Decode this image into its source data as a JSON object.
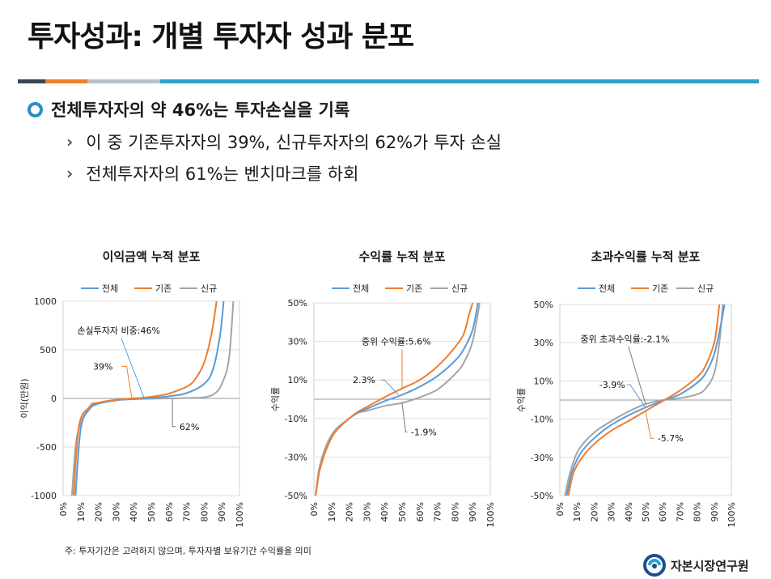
{
  "slide": {
    "title": "투자성과: 개별 투자자 성과 분포",
    "bullet_main": "전체투자자의 약 46%는 투자손실을 기록",
    "bullet_sub1": "이 중 기존투자자의 39%, 신규투자자의 62%가 투자 손실",
    "bullet_sub2": "전체투자자의 61%는 벤치마크를 하회",
    "footnote": "주: 투자기간은 고려하지 않으며, 투자자별 보유기간 수익률을 의미",
    "logo_text": "자본시장연구원",
    "rule_colors": [
      "#3a4656",
      "#f07f28",
      "#b8c1c9",
      "#2aa4cd"
    ]
  },
  "icons": {
    "bullet": "ring-bullet-icon",
    "sub": "chevron-right-icon",
    "logo": "swirl-logo-icon"
  },
  "colors": {
    "전체": "#5b9bd5",
    "기존": "#ed7d31",
    "신규": "#a5a5a5"
  },
  "chart_data": [
    {
      "type": "line",
      "title": "이익금액 누적 분포",
      "xlabel": "",
      "ylabel": "이익(만원)",
      "ylim": [
        -1000,
        1000
      ],
      "yticks": [
        1000,
        500,
        0,
        -500,
        -1000
      ],
      "ytick_labels": [
        "1000",
        "500",
        "0",
        "-500",
        "-1000"
      ],
      "x": [
        0,
        10,
        20,
        30,
        40,
        50,
        60,
        70,
        80,
        90,
        100
      ],
      "xtick_labels": [
        "0%",
        "10%",
        "20%",
        "30%",
        "40%",
        "50%",
        "60%",
        "70%",
        "80%",
        "90%",
        "100%"
      ],
      "grid": "horizontal",
      "legend": "top",
      "series": [
        {
          "name": "전체",
          "points": [
            [
              7,
              -1000
            ],
            [
              10,
              -310
            ],
            [
              15,
              -110
            ],
            [
              20,
              -55
            ],
            [
              30,
              -20
            ],
            [
              40,
              -6
            ],
            [
              46,
              0
            ],
            [
              50,
              4
            ],
            [
              60,
              22
            ],
            [
              70,
              55
            ],
            [
              80,
              150
            ],
            [
              85,
              300
            ],
            [
              89,
              650
            ],
            [
              91,
              1000
            ]
          ]
        },
        {
          "name": "기존",
          "points": [
            [
              6,
              -1000
            ],
            [
              9,
              -280
            ],
            [
              15,
              -90
            ],
            [
              20,
              -45
            ],
            [
              30,
              -15
            ],
            [
              39,
              0
            ],
            [
              45,
              6
            ],
            [
              55,
              30
            ],
            [
              60,
              50
            ],
            [
              70,
              120
            ],
            [
              75,
              200
            ],
            [
              80,
              370
            ],
            [
              84,
              650
            ],
            [
              87,
              1000
            ]
          ]
        },
        {
          "name": "신규",
          "points": [
            [
              5,
              -1000
            ],
            [
              8,
              -380
            ],
            [
              15,
              -85
            ],
            [
              20,
              -45
            ],
            [
              30,
              -15
            ],
            [
              40,
              -8
            ],
            [
              50,
              -3
            ],
            [
              62,
              0
            ],
            [
              70,
              4
            ],
            [
              80,
              12
            ],
            [
              86,
              50
            ],
            [
              90,
              150
            ],
            [
              94,
              400
            ],
            [
              96.5,
              1000
            ]
          ]
        }
      ],
      "annotations": [
        {
          "text": "손실투자자 비중:46%",
          "x": 46,
          "y": 0
        },
        {
          "text": "39%",
          "x": 39,
          "y": 0
        },
        {
          "text": "62%",
          "x": 62,
          "y": 0
        }
      ]
    },
    {
      "type": "line",
      "title": "수익률 누적 분포",
      "xlabel": "",
      "ylabel": "수익률",
      "ylim": [
        -50,
        50
      ],
      "yticks": [
        50,
        30,
        10,
        -10,
        -30,
        -50
      ],
      "ytick_labels": [
        "50%",
        "30%",
        "10%",
        "-10%",
        "-30%",
        "-50%"
      ],
      "x": [
        0,
        10,
        20,
        30,
        40,
        50,
        60,
        70,
        80,
        90,
        100
      ],
      "xtick_labels": [
        "0%",
        "10%",
        "20%",
        "30%",
        "40%",
        "50%",
        "60%",
        "70%",
        "80%",
        "90%",
        "100%"
      ],
      "grid": "horizontal",
      "legend": "top",
      "series": [
        {
          "name": "전체",
          "points": [
            [
              1,
              -50
            ],
            [
              3,
              -38
            ],
            [
              7,
              -26
            ],
            [
              12,
              -17
            ],
            [
              20,
              -10
            ],
            [
              25,
              -7
            ],
            [
              30,
              -5
            ],
            [
              40,
              -1
            ],
            [
              50,
              2.3
            ],
            [
              60,
              6.5
            ],
            [
              70,
              12
            ],
            [
              80,
              20
            ],
            [
              85,
              26
            ],
            [
              90,
              36
            ],
            [
              93,
              50
            ]
          ]
        },
        {
          "name": "기존",
          "points": [
            [
              1,
              -50
            ],
            [
              3,
              -38
            ],
            [
              7,
              -26
            ],
            [
              12,
              -17
            ],
            [
              20,
              -10
            ],
            [
              25,
              -6.5
            ],
            [
              30,
              -4
            ],
            [
              40,
              1
            ],
            [
              50,
              5.6
            ],
            [
              60,
              10
            ],
            [
              70,
              17
            ],
            [
              80,
              27
            ],
            [
              85,
              34
            ],
            [
              88,
              44
            ],
            [
              90,
              50
            ]
          ]
        },
        {
          "name": "신규",
          "points": [
            [
              1,
              -50
            ],
            [
              3,
              -36
            ],
            [
              7,
              -24
            ],
            [
              12,
              -16
            ],
            [
              20,
              -10
            ],
            [
              25,
              -7
            ],
            [
              30,
              -6
            ],
            [
              40,
              -3.5
            ],
            [
              50,
              -1.9
            ],
            [
              60,
              1
            ],
            [
              70,
              5
            ],
            [
              80,
              13
            ],
            [
              85,
              19
            ],
            [
              90,
              30
            ],
            [
              94,
              50
            ]
          ]
        }
      ],
      "annotations": [
        {
          "text": "중위 수익률:5.6%",
          "x": 50,
          "y": 5.6
        },
        {
          "text": "2.3%",
          "x": 50,
          "y": 2.3
        },
        {
          "text": "-1.9%",
          "x": 50,
          "y": -1.9
        }
      ]
    },
    {
      "type": "line",
      "title": "초과수익률 누적 분포",
      "xlabel": "",
      "ylabel": "수익률",
      "ylim": [
        -50,
        50
      ],
      "yticks": [
        50,
        30,
        10,
        -10,
        -30,
        -50
      ],
      "ytick_labels": [
        "50%",
        "30%",
        "10%",
        "-10%",
        "-30%",
        "-50%"
      ],
      "x": [
        0,
        10,
        20,
        30,
        40,
        50,
        60,
        70,
        80,
        90,
        100
      ],
      "xtick_labels": [
        "0%",
        "10%",
        "20%",
        "30%",
        "40%",
        "50%",
        "60%",
        "70%",
        "80%",
        "90%",
        "100%"
      ],
      "grid": "horizontal",
      "legend": "top",
      "series": [
        {
          "name": "전체",
          "points": [
            [
              4,
              -50
            ],
            [
              7,
              -38
            ],
            [
              12,
              -28
            ],
            [
              20,
              -20
            ],
            [
              30,
              -13
            ],
            [
              40,
              -8
            ],
            [
              50,
              -3.9
            ],
            [
              61,
              0
            ],
            [
              70,
              3
            ],
            [
              80,
              9
            ],
            [
              85,
              14
            ],
            [
              90,
              24
            ],
            [
              94,
              40
            ],
            [
              96,
              50
            ]
          ]
        },
        {
          "name": "기존",
          "points": [
            [
              5,
              -50
            ],
            [
              8,
              -38
            ],
            [
              13,
              -30
            ],
            [
              20,
              -23
            ],
            [
              30,
              -16
            ],
            [
              40,
              -11
            ],
            [
              50,
              -5.7
            ],
            [
              61,
              0
            ],
            [
              70,
              5
            ],
            [
              80,
              12
            ],
            [
              85,
              18
            ],
            [
              90,
              30
            ],
            [
              92,
              42
            ],
            [
              93,
              50
            ]
          ]
        },
        {
          "name": "신규",
          "points": [
            [
              3,
              -50
            ],
            [
              6,
              -38
            ],
            [
              11,
              -26
            ],
            [
              20,
              -17
            ],
            [
              30,
              -11
            ],
            [
              40,
              -6
            ],
            [
              50,
              -2.1
            ],
            [
              60,
              0
            ],
            [
              70,
              1
            ],
            [
              80,
              3
            ],
            [
              85,
              6
            ],
            [
              90,
              14
            ],
            [
              93,
              30
            ],
            [
              95,
              50
            ]
          ]
        }
      ],
      "annotations": [
        {
          "text": "중위 초과수익률:-2.1%",
          "x": 50,
          "y": -2.1
        },
        {
          "text": "-3.9%",
          "x": 50,
          "y": -3.9
        },
        {
          "text": "-5.7%",
          "x": 50,
          "y": -5.7
        }
      ]
    }
  ]
}
